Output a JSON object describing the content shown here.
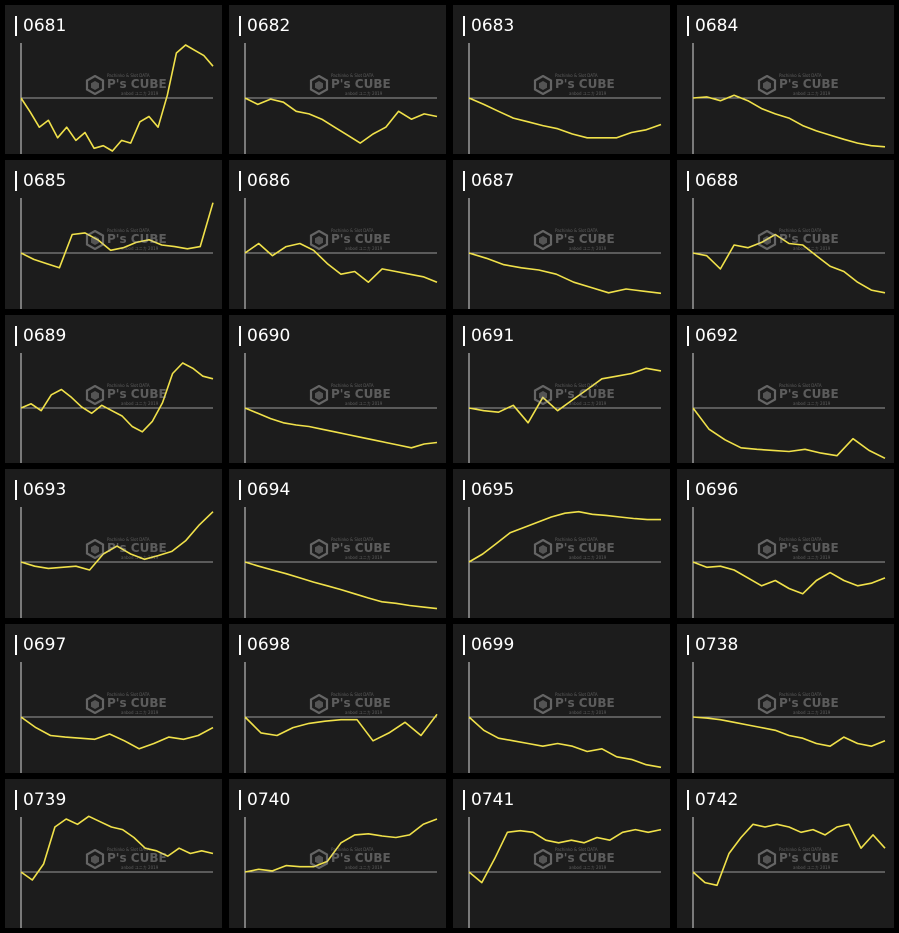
{
  "colors": {
    "line": "#f0e14a",
    "baseline": "#9a9a9a",
    "panel": "#1c1c1c",
    "text": "#ffffff"
  },
  "watermark": {
    "top": "Pachinko & Slot DATA",
    "main": "P's CUBE",
    "bottom": "anbod ユニカ 2019"
  },
  "chart_data": [
    {
      "type": "line",
      "title": "0681",
      "ylim": [
        -1,
        1
      ],
      "values": [
        0,
        -0.26,
        -0.55,
        -0.42,
        -0.75,
        -0.55,
        -0.8,
        -0.65,
        -0.95,
        -0.9,
        -1.0,
        -0.8,
        -0.85,
        -0.45,
        -0.35,
        -0.55,
        0.05,
        0.85,
        1.0,
        0.9,
        0.8,
        0.6
      ]
    },
    {
      "type": "line",
      "title": "0682",
      "ylim": [
        -1,
        1
      ],
      "values": [
        0,
        -0.12,
        -0.02,
        -0.08,
        -0.25,
        -0.3,
        -0.4,
        -0.55,
        -0.7,
        -0.85,
        -0.68,
        -0.55,
        -0.25,
        -0.4,
        -0.3,
        -0.35
      ]
    },
    {
      "type": "line",
      "title": "0683",
      "ylim": [
        -1,
        1
      ],
      "values": [
        0,
        -0.12,
        -0.25,
        -0.38,
        -0.45,
        -0.52,
        -0.58,
        -0.68,
        -0.75,
        -0.75,
        -0.75,
        -0.65,
        -0.6,
        -0.5
      ]
    },
    {
      "type": "line",
      "title": "0684",
      "ylim": [
        -1,
        1
      ],
      "values": [
        0,
        0.02,
        -0.05,
        0.05,
        -0.05,
        -0.2,
        -0.3,
        -0.38,
        -0.52,
        -0.62,
        -0.7,
        -0.78,
        -0.85,
        -0.9,
        -0.92
      ]
    },
    {
      "type": "line",
      "title": "0685",
      "ylim": [
        -1,
        1
      ],
      "values": [
        0,
        -0.12,
        -0.2,
        -0.28,
        0.35,
        0.38,
        0.25,
        0.05,
        0.1,
        0.2,
        0.25,
        0.15,
        0.12,
        0.08,
        0.12,
        0.95
      ]
    },
    {
      "type": "line",
      "title": "0686",
      "ylim": [
        -1,
        1
      ],
      "values": [
        0,
        0.18,
        -0.05,
        0.12,
        0.18,
        0.05,
        -0.2,
        -0.4,
        -0.35,
        -0.55,
        -0.3,
        -0.35,
        -0.4,
        -0.45,
        -0.55
      ]
    },
    {
      "type": "line",
      "title": "0687",
      "ylim": [
        -1,
        1
      ],
      "values": [
        0,
        -0.1,
        -0.22,
        -0.28,
        -0.32,
        -0.4,
        -0.55,
        -0.65,
        -0.75,
        -0.68,
        -0.72,
        -0.76
      ]
    },
    {
      "type": "line",
      "title": "0688",
      "ylim": [
        -1,
        1
      ],
      "values": [
        0,
        -0.05,
        -0.3,
        0.15,
        0.1,
        0.2,
        0.35,
        0.18,
        0.15,
        -0.05,
        -0.25,
        -0.35,
        -0.55,
        -0.7,
        -0.75
      ]
    },
    {
      "type": "line",
      "title": "0689",
      "ylim": [
        -1,
        1
      ],
      "values": [
        0,
        0.08,
        -0.05,
        0.25,
        0.35,
        0.2,
        0.02,
        -0.1,
        0.05,
        -0.05,
        -0.15,
        -0.35,
        -0.45,
        -0.25,
        0.1,
        0.65,
        0.85,
        0.75,
        0.6,
        0.55
      ]
    },
    {
      "type": "line",
      "title": "0690",
      "ylim": [
        -1,
        1
      ],
      "values": [
        0,
        -0.1,
        -0.2,
        -0.28,
        -0.32,
        -0.35,
        -0.4,
        -0.45,
        -0.5,
        -0.55,
        -0.6,
        -0.65,
        -0.7,
        -0.75,
        -0.68,
        -0.65
      ]
    },
    {
      "type": "line",
      "title": "0691",
      "ylim": [
        -1,
        1
      ],
      "values": [
        0,
        -0.05,
        -0.08,
        0.05,
        -0.28,
        0.2,
        -0.05,
        0.15,
        0.35,
        0.55,
        0.6,
        0.65,
        0.75,
        0.7
      ]
    },
    {
      "type": "line",
      "title": "0692",
      "ylim": [
        -1,
        1
      ],
      "values": [
        0,
        -0.4,
        -0.6,
        -0.75,
        -0.78,
        -0.8,
        -0.82,
        -0.78,
        -0.85,
        -0.9,
        -0.58,
        -0.8,
        -0.95
      ]
    },
    {
      "type": "line",
      "title": "0693",
      "ylim": [
        -1,
        1
      ],
      "values": [
        0,
        -0.08,
        -0.12,
        -0.1,
        -0.08,
        -0.15,
        0.15,
        0.3,
        0.15,
        0.05,
        0.12,
        0.2,
        0.4,
        0.7,
        0.95
      ]
    },
    {
      "type": "line",
      "title": "0694",
      "ylim": [
        -1,
        1
      ],
      "values": [
        0,
        -0.08,
        -0.15,
        -0.22,
        -0.3,
        -0.38,
        -0.45,
        -0.52,
        -0.6,
        -0.68,
        -0.75,
        -0.78,
        -0.82,
        -0.85,
        -0.88
      ]
    },
    {
      "type": "line",
      "title": "0695",
      "ylim": [
        -1,
        1
      ],
      "values": [
        0,
        0.15,
        0.35,
        0.55,
        0.65,
        0.75,
        0.85,
        0.92,
        0.95,
        0.9,
        0.88,
        0.85,
        0.82,
        0.8,
        0.8
      ]
    },
    {
      "type": "line",
      "title": "0696",
      "ylim": [
        -1,
        1
      ],
      "values": [
        0,
        -0.1,
        -0.08,
        -0.15,
        -0.3,
        -0.45,
        -0.35,
        -0.5,
        -0.6,
        -0.35,
        -0.2,
        -0.35,
        -0.45,
        -0.4,
        -0.3
      ]
    },
    {
      "type": "line",
      "title": "0697",
      "ylim": [
        -1,
        1
      ],
      "values": [
        0,
        -0.2,
        -0.35,
        -0.38,
        -0.4,
        -0.42,
        -0.32,
        -0.45,
        -0.6,
        -0.5,
        -0.38,
        -0.42,
        -0.35,
        -0.2
      ]
    },
    {
      "type": "line",
      "title": "0698",
      "ylim": [
        -1,
        1
      ],
      "values": [
        0,
        -0.3,
        -0.35,
        -0.2,
        -0.12,
        -0.08,
        -0.05,
        -0.05,
        -0.45,
        -0.3,
        -0.1,
        -0.35,
        0.05
      ]
    },
    {
      "type": "line",
      "title": "0699",
      "ylim": [
        -1,
        1
      ],
      "values": [
        0,
        -0.25,
        -0.4,
        -0.45,
        -0.5,
        -0.55,
        -0.5,
        -0.55,
        -0.65,
        -0.6,
        -0.75,
        -0.8,
        -0.9,
        -0.95
      ]
    },
    {
      "type": "line",
      "title": "0738",
      "ylim": [
        -1,
        1
      ],
      "values": [
        0,
        -0.02,
        -0.05,
        -0.1,
        -0.15,
        -0.2,
        -0.25,
        -0.35,
        -0.4,
        -0.5,
        -0.55,
        -0.38,
        -0.5,
        -0.55,
        -0.45
      ]
    },
    {
      "type": "line",
      "title": "0739",
      "ylim": [
        -1,
        1
      ],
      "values": [
        0,
        -0.15,
        0.15,
        0.85,
        1.0,
        0.9,
        1.05,
        0.95,
        0.85,
        0.8,
        0.65,
        0.45,
        0.4,
        0.3,
        0.45,
        0.35,
        0.4,
        0.35
      ]
    },
    {
      "type": "line",
      "title": "0740",
      "ylim": [
        -1,
        1
      ],
      "values": [
        0,
        0.05,
        0.02,
        0.12,
        0.1,
        0.1,
        0.2,
        0.55,
        0.7,
        0.72,
        0.68,
        0.65,
        0.7,
        0.9,
        1.0
      ]
    },
    {
      "type": "line",
      "title": "0741",
      "ylim": [
        -1,
        1
      ],
      "values": [
        0,
        -0.2,
        0.25,
        0.75,
        0.78,
        0.75,
        0.6,
        0.55,
        0.6,
        0.55,
        0.65,
        0.6,
        0.75,
        0.8,
        0.75,
        0.8
      ]
    },
    {
      "type": "line",
      "title": "0742",
      "ylim": [
        -1,
        1
      ],
      "values": [
        0,
        -0.2,
        -0.25,
        0.35,
        0.65,
        0.9,
        0.85,
        0.9,
        0.85,
        0.75,
        0.8,
        0.7,
        0.85,
        0.9,
        0.45,
        0.7,
        0.45
      ]
    }
  ]
}
